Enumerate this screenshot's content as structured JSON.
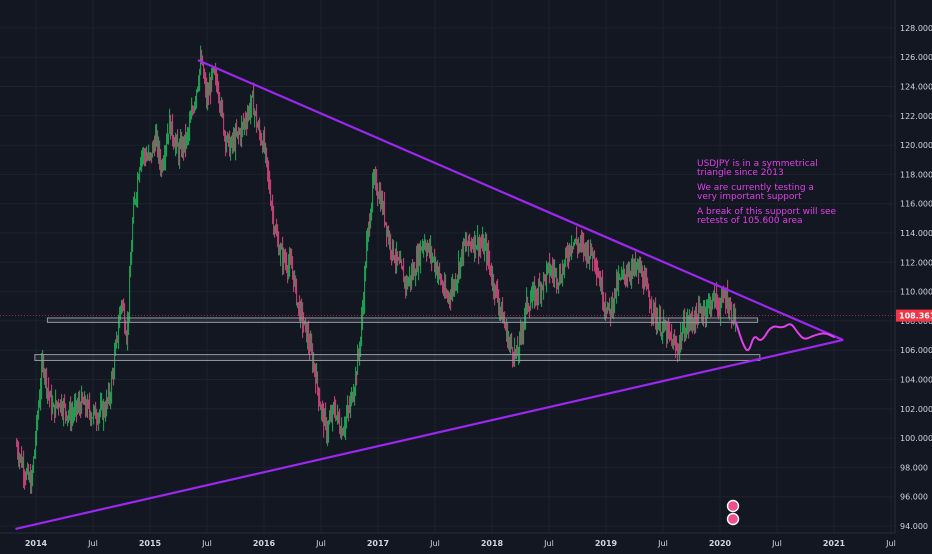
{
  "chart_data": {
    "type": "candlestick",
    "symbol": "USDJPY",
    "title": "",
    "ylim": [
      93.6,
      129.2
    ],
    "xlim": [
      2013.82,
      2021.5
    ],
    "y_ticks": [
      {
        "v": 94,
        "label": "94.000"
      },
      {
        "v": 96,
        "label": "96.000"
      },
      {
        "v": 98,
        "label": "98.000"
      },
      {
        "v": 100,
        "label": "100.000"
      },
      {
        "v": 102,
        "label": "102.000"
      },
      {
        "v": 104,
        "label": "104.000"
      },
      {
        "v": 106,
        "label": "106.000"
      },
      {
        "v": 108,
        "label": "108.000"
      },
      {
        "v": 110,
        "label": "110.000"
      },
      {
        "v": 112,
        "label": "112.000"
      },
      {
        "v": 114,
        "label": "114.000"
      },
      {
        "v": 116,
        "label": "116.000"
      },
      {
        "v": 118,
        "label": "118.000"
      },
      {
        "v": 120,
        "label": "120.000"
      },
      {
        "v": 122,
        "label": "122.000"
      },
      {
        "v": 124,
        "label": "124.000"
      },
      {
        "v": 126,
        "label": "126.000"
      },
      {
        "v": 128,
        "label": "128.000"
      }
    ],
    "x_ticks": [
      {
        "t": 2014.0,
        "label": "2014",
        "bold": true
      },
      {
        "t": 2014.5,
        "label": "Jul",
        "bold": false
      },
      {
        "t": 2015.0,
        "label": "2015",
        "bold": true
      },
      {
        "t": 2015.5,
        "label": "Jul",
        "bold": false
      },
      {
        "t": 2016.0,
        "label": "2016",
        "bold": true
      },
      {
        "t": 2016.5,
        "label": "Jul",
        "bold": false
      },
      {
        "t": 2017.0,
        "label": "2017",
        "bold": true
      },
      {
        "t": 2017.5,
        "label": "Jul",
        "bold": false
      },
      {
        "t": 2018.0,
        "label": "2018",
        "bold": true
      },
      {
        "t": 2018.5,
        "label": "Jul",
        "bold": false
      },
      {
        "t": 2019.0,
        "label": "2019",
        "bold": true
      },
      {
        "t": 2019.5,
        "label": "Jul",
        "bold": false
      },
      {
        "t": 2020.0,
        "label": "2020",
        "bold": true
      },
      {
        "t": 2020.5,
        "label": "Jul",
        "bold": false
      },
      {
        "t": 2021.0,
        "label": "2021",
        "bold": true
      },
      {
        "t": 2021.5,
        "label": "Jul",
        "bold": false
      }
    ],
    "price_keypoints": [
      [
        2013.83,
        99.5
      ],
      [
        2013.9,
        97.8
      ],
      [
        2013.96,
        96.8
      ],
      [
        2014.02,
        102.0
      ],
      [
        2014.06,
        105.3
      ],
      [
        2014.1,
        103.5
      ],
      [
        2014.15,
        101.8
      ],
      [
        2014.2,
        102.6
      ],
      [
        2014.3,
        101.5
      ],
      [
        2014.4,
        102.4
      ],
      [
        2014.5,
        101.6
      ],
      [
        2014.6,
        101.9
      ],
      [
        2014.65,
        103.0
      ],
      [
        2014.7,
        106.0
      ],
      [
        2014.75,
        109.5
      ],
      [
        2014.8,
        107.0
      ],
      [
        2014.85,
        115.0
      ],
      [
        2014.92,
        119.5
      ],
      [
        2015.0,
        119.0
      ],
      [
        2015.05,
        120.5
      ],
      [
        2015.1,
        118.5
      ],
      [
        2015.17,
        121.5
      ],
      [
        2015.25,
        119.5
      ],
      [
        2015.33,
        120.5
      ],
      [
        2015.4,
        123.5
      ],
      [
        2015.45,
        125.8
      ],
      [
        2015.5,
        123.0
      ],
      [
        2015.55,
        124.8
      ],
      [
        2015.6,
        124.0
      ],
      [
        2015.65,
        121.0
      ],
      [
        2015.7,
        119.8
      ],
      [
        2015.8,
        121.0
      ],
      [
        2015.9,
        123.0
      ],
      [
        2015.95,
        121.0
      ],
      [
        2016.0,
        120.0
      ],
      [
        2016.05,
        117.0
      ],
      [
        2016.1,
        114.0
      ],
      [
        2016.15,
        112.5
      ],
      [
        2016.25,
        111.5
      ],
      [
        2016.3,
        109.0
      ],
      [
        2016.38,
        107.0
      ],
      [
        2016.45,
        104.5
      ],
      [
        2016.5,
        102.0
      ],
      [
        2016.55,
        100.5
      ],
      [
        2016.62,
        102.0
      ],
      [
        2016.68,
        100.5
      ],
      [
        2016.75,
        102.0
      ],
      [
        2016.8,
        104.0
      ],
      [
        2016.85,
        107.0
      ],
      [
        2016.9,
        113.0
      ],
      [
        2016.96,
        117.5
      ],
      [
        2017.0,
        117.0
      ],
      [
        2017.05,
        115.5
      ],
      [
        2017.1,
        113.5
      ],
      [
        2017.17,
        112.0
      ],
      [
        2017.25,
        110.5
      ],
      [
        2017.32,
        111.5
      ],
      [
        2017.4,
        113.5
      ],
      [
        2017.5,
        112.0
      ],
      [
        2017.6,
        109.5
      ],
      [
        2017.67,
        110.5
      ],
      [
        2017.75,
        113.0
      ],
      [
        2017.85,
        113.5
      ],
      [
        2017.95,
        112.8
      ],
      [
        2018.0,
        111.0
      ],
      [
        2018.07,
        109.0
      ],
      [
        2018.15,
        106.5
      ],
      [
        2018.22,
        105.5
      ],
      [
        2018.3,
        109.0
      ],
      [
        2018.4,
        110.0
      ],
      [
        2018.5,
        111.5
      ],
      [
        2018.6,
        111.0
      ],
      [
        2018.7,
        113.5
      ],
      [
        2018.8,
        113.0
      ],
      [
        2018.9,
        112.5
      ],
      [
        2018.98,
        109.5
      ],
      [
        2019.03,
        108.5
      ],
      [
        2019.1,
        110.5
      ],
      [
        2019.2,
        111.5
      ],
      [
        2019.3,
        111.5
      ],
      [
        2019.38,
        109.5
      ],
      [
        2019.45,
        108.0
      ],
      [
        2019.55,
        107.0
      ],
      [
        2019.62,
        106.0
      ],
      [
        2019.68,
        107.5
      ],
      [
        2019.75,
        108.0
      ],
      [
        2019.85,
        108.7
      ],
      [
        2019.95,
        109.5
      ],
      [
        2020.0,
        109.0
      ],
      [
        2020.05,
        109.8
      ],
      [
        2020.1,
        108.5
      ],
      [
        2020.14,
        108.3
      ]
    ],
    "annotations": {
      "lines": [
        "USDJPY is in a symmetrical",
        "triangle since 2013",
        "",
        "We are currently testing a",
        "very important support",
        "",
        "A break of this support will see",
        "retests of 105.600 area"
      ]
    },
    "triangle": {
      "upper": [
        [
          2015.42,
          125.8
        ],
        [
          2021.08,
          106.7
        ]
      ],
      "lower": [
        [
          2013.82,
          93.8
        ],
        [
          2021.08,
          106.7
        ]
      ],
      "color": "#9c27f0"
    },
    "support_zones": [
      {
        "t_start": 2014.1,
        "t_end": 2020.33,
        "v_low": 107.9,
        "v_high": 108.2
      },
      {
        "t_start": 2013.99,
        "t_end": 2020.35,
        "v_low": 105.3,
        "v_high": 105.7
      }
    ],
    "projection": [
      [
        2020.14,
        107.9
      ],
      [
        2020.2,
        106.4
      ],
      [
        2020.25,
        105.8
      ],
      [
        2020.3,
        107.1
      ],
      [
        2020.36,
        106.5
      ],
      [
        2020.45,
        107.7
      ],
      [
        2020.55,
        107.5
      ],
      [
        2020.62,
        107.9
      ],
      [
        2020.68,
        107.2
      ],
      [
        2020.74,
        106.7
      ],
      [
        2020.82,
        107.0
      ],
      [
        2020.92,
        107.2
      ],
      [
        2021.0,
        106.9
      ]
    ],
    "current_price": {
      "value": 108.361,
      "label": "108.361",
      "color": "#f23645"
    },
    "colors": {
      "background": "#131722",
      "text": "#d1d4dc",
      "candle_up": "#22c55e",
      "candle_down": "#ef4f8b",
      "annotation": "#e040e6",
      "projection": "#e040e6",
      "zone_border": "#9598a1"
    }
  }
}
